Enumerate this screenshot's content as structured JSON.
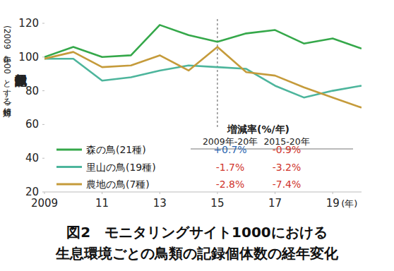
{
  "chart_data": {
    "type": "line",
    "title": "図2　モニタリングサイト1000における",
    "subtitle": "生息環境ごとの鳥類の記録個体数の経年変化",
    "y_label": "記録個体数",
    "y_label_note": "(2009年を100とする相対値)",
    "x_label": "(年)",
    "x": [
      2009,
      2010,
      2011,
      2012,
      2013,
      2014,
      2015,
      2016,
      2017,
      2018,
      2019,
      2020
    ],
    "series": [
      {
        "name": "森の鳥(21種)",
        "color": "#35a84a",
        "line_style": "solid",
        "values": [
          100,
          106,
          100,
          101,
          119,
          113,
          109,
          114,
          116,
          108,
          111,
          105
        ]
      },
      {
        "name": "里山の鳥(19種)",
        "color": "#4db59c",
        "line_style": "solid",
        "values": [
          99,
          99,
          86,
          88,
          92,
          95,
          94,
          93,
          83,
          76,
          80,
          83
        ]
      },
      {
        "name": "農地の鳥(7種)",
        "color": "#c59b3b",
        "line_style": "solid",
        "values": [
          99,
          103,
          94,
          95,
          101,
          92,
          106,
          91,
          89,
          82,
          76,
          70
        ]
      }
    ],
    "xlim": [
      2009,
      2020
    ],
    "ylim": [
      20,
      120
    ],
    "xticks": [
      2009,
      {
        "value": 2011,
        "label": "11"
      },
      {
        "value": 2013,
        "label": "13"
      },
      {
        "value": 2015,
        "label": "15"
      },
      {
        "value": 2017,
        "label": "17"
      },
      {
        "value": 2019,
        "label": "19"
      }
    ],
    "yticks": [
      20,
      40,
      60,
      80,
      100,
      120
    ],
    "grid": false,
    "legend": "lower left",
    "vline": 2015,
    "rate_table": {
      "title": "増減率(%/年)",
      "columns": [
        "2009年-20年",
        "2015-20年"
      ],
      "rows": [
        [
          "+0.7%",
          "-0.9%"
        ],
        [
          "-1.7%",
          "-3.2%"
        ],
        [
          "-2.8%",
          "-7.4%"
        ]
      ]
    }
  }
}
